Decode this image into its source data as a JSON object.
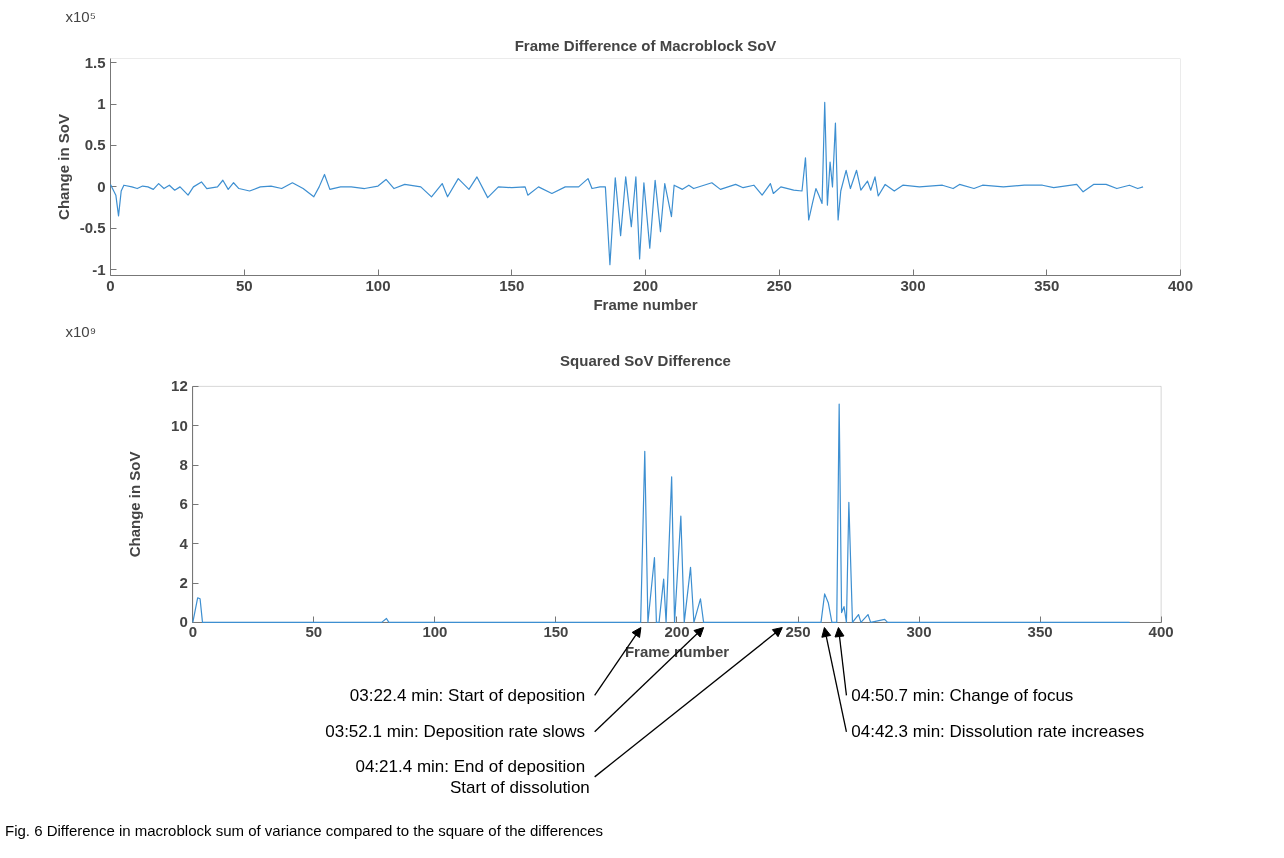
{
  "chart_data": [
    {
      "type": "line",
      "title": "Frame Difference of Macroblock SoV",
      "xlabel": "Frame number",
      "ylabel": "Change in SoV",
      "annotations": [
        "x10⁵"
      ],
      "xlim": [
        0,
        400
      ],
      "ylim": [
        -1.07,
        1.55
      ],
      "xticks": [
        0,
        50,
        100,
        150,
        200,
        250,
        300,
        350,
        400
      ],
      "yticks": [
        -1,
        -0.5,
        0,
        0.5,
        1,
        1.5
      ],
      "series": [
        {
          "color": "#3d8fd1",
          "x": [
            0,
            2,
            3,
            4,
            5,
            8,
            10,
            12,
            14,
            16,
            18,
            20,
            22,
            24,
            26,
            29,
            31,
            34,
            36,
            40,
            42,
            44,
            46,
            48,
            52,
            56,
            60,
            64,
            68,
            72,
            76,
            78,
            80,
            82,
            86,
            90,
            95,
            100,
            103,
            106,
            110,
            116,
            120,
            124,
            126,
            130,
            134,
            137,
            141,
            145,
            150,
            155,
            156,
            160,
            165,
            170,
            175,
            178.5,
            180,
            183,
            185,
            186.7,
            188.7,
            190.7,
            192.6,
            194.7,
            196.4,
            197.8,
            199.4,
            201.6,
            203.6,
            205.6,
            207.2,
            209.7,
            210.7,
            213.8,
            216.2,
            218,
            224.8,
            228,
            233.7,
            236.5,
            240.5,
            243.6,
            246.7,
            247.8,
            250.6,
            255.4,
            258.5,
            259.8,
            261,
            262.4,
            263.7,
            264.8,
            266,
            267,
            268,
            269,
            269.9,
            271,
            272,
            273,
            275,
            276.6,
            278.9,
            280.5,
            283,
            284.2,
            285.8,
            287,
            289.6,
            293,
            296.2,
            302.4,
            311,
            315,
            317.4,
            322.8,
            326,
            333.8,
            341.6,
            348.4,
            352.6,
            361.2,
            363.6,
            367.5,
            372.2,
            376.2,
            380.9,
            384,
            386
          ],
          "values": [
            0.03,
            -0.1,
            -0.35,
            -0.05,
            0.02,
            0.0,
            -0.02,
            0.01,
            0.0,
            -0.03,
            0.04,
            -0.02,
            0.02,
            -0.04,
            0.0,
            -0.1,
            0.0,
            0.06,
            -0.02,
            0.0,
            0.08,
            -0.03,
            0.05,
            -0.02,
            -0.05,
            0.0,
            0.01,
            -0.02,
            0.05,
            -0.02,
            -0.12,
            0.0,
            0.15,
            -0.03,
            0.0,
            0.0,
            -0.02,
            0.01,
            0.09,
            -0.02,
            0.03,
            0.0,
            -0.12,
            0.04,
            -0.12,
            0.1,
            -0.03,
            0.12,
            -0.13,
            0.0,
            -0.01,
            0.0,
            -0.1,
            0.0,
            -0.08,
            0.0,
            0.0,
            0.1,
            -0.02,
            0.0,
            0.0,
            -0.94,
            0.11,
            -0.59,
            0.12,
            -0.48,
            0.12,
            -0.87,
            0.05,
            -0.74,
            0.08,
            -0.54,
            0.04,
            -0.36,
            0.02,
            -0.03,
            0.02,
            -0.02,
            0.05,
            -0.03,
            0.03,
            -0.01,
            0.02,
            -0.1,
            0.04,
            -0.08,
            0.0,
            -0.04,
            -0.05,
            0.35,
            -0.4,
            -0.2,
            -0.02,
            -0.1,
            -0.2,
            1.02,
            -0.22,
            0.3,
            0.0,
            0.77,
            -0.4,
            -0.05,
            0.2,
            -0.02,
            0.2,
            -0.04,
            0.07,
            -0.04,
            0.12,
            -0.11,
            0.03,
            -0.05,
            0.02,
            0.0,
            0.02,
            -0.02,
            0.03,
            -0.02,
            0.02,
            0.0,
            0.02,
            0.02,
            -0.01,
            0.03,
            -0.06,
            0.03,
            0.03,
            -0.02,
            0.02,
            -0.02,
            0.0
          ]
        }
      ]
    },
    {
      "type": "line",
      "title": "Squared SoV Difference",
      "xlabel": "Frame number",
      "ylabel": "Change in SoV",
      "xlim": [
        0,
        400
      ],
      "ylim": [
        0,
        12
      ],
      "xticks": [
        0,
        50,
        100,
        150,
        200,
        250,
        300,
        350,
        400
      ],
      "yticks": [
        0,
        2,
        4,
        6,
        8,
        10,
        12
      ],
      "annotations": [
        "x10⁹",
        {
          "text": "03:22.4 min:  Start of deposition",
          "x": 185.1,
          "y": 0
        },
        {
          "text": "03:52.1 min:  Deposition rate slows",
          "x": 211,
          "y": 0
        },
        {
          "text": "04:21.4 min:  End of deposition\nStart of dissolution",
          "x": 243.5,
          "y": 0
        },
        {
          "text": "04:42.3 min:  Dissolution rate increases",
          "x": 260.9,
          "y": 0
        },
        {
          "text": "04:50.7 min:  Change of focus",
          "x": 266.7,
          "y": 0
        },
        "Fig. 6  Difference in macroblock sum of variance compared to the square of the differences"
      ],
      "series": [
        {
          "color": "#3d8fd1",
          "x": [
            0,
            2,
            3,
            4,
            8,
            78,
            80,
            81,
            185,
            186.7,
            188,
            190.7,
            191.5,
            192.6,
            194.5,
            195.5,
            197.8,
            199,
            201.6,
            203,
            205.6,
            207,
            209.7,
            211,
            245,
            259.5,
            261,
            262.5,
            264,
            266,
            267,
            268,
            269,
            270,
            271,
            272.5,
            275,
            276,
            278.9,
            280,
            285.8,
            287,
            387
          ],
          "values": [
            0,
            1.25,
            1.2,
            0,
            0,
            0,
            0.2,
            0,
            0,
            8.7,
            0,
            3.3,
            0,
            0,
            2.2,
            0,
            7.4,
            0,
            5.4,
            0,
            2.8,
            0,
            1.2,
            0,
            0,
            0,
            1.45,
            1.0,
            0,
            0,
            11.1,
            0.5,
            0.8,
            0,
            6.1,
            0,
            0.4,
            0,
            0.4,
            0,
            0.15,
            0,
            0
          ]
        }
      ]
    }
  ]
}
